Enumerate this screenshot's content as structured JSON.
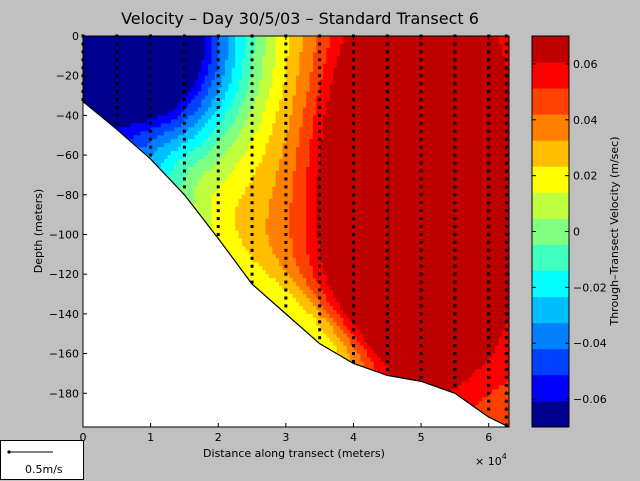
{
  "figure": {
    "background": "#c0c0c0",
    "scale_label": "0.5m/s",
    "x_multiplier_base": "× 10",
    "x_multiplier_exp": "4"
  },
  "chart_data": {
    "type": "heatmap",
    "title": "Velocity – Day 30/5/03 – Standard Transect 6",
    "xlabel": "Distance along transect (meters)",
    "ylabel": "Depth (meters)",
    "colorbar_label": "Through–Transect Velocity (m/sec)",
    "xlim": [
      0,
      63000
    ],
    "ylim": [
      -197,
      0
    ],
    "x_ticks": [
      0,
      10000,
      20000,
      30000,
      40000,
      50000,
      60000
    ],
    "x_tick_labels": [
      "0",
      "1",
      "2",
      "3",
      "4",
      "5",
      "6"
    ],
    "y_ticks": [
      0,
      -20,
      -40,
      -60,
      -80,
      -100,
      -120,
      -140,
      -160,
      -180
    ],
    "y_tick_labels": [
      "0",
      "−20",
      "−40",
      "−60",
      "−80",
      "−100",
      "−120",
      "−140",
      "−160",
      "−180"
    ],
    "clim": [
      -0.07,
      0.07
    ],
    "colorbar_ticks": [
      0.06,
      0.04,
      0.02,
      0,
      -0.02,
      -0.04,
      -0.06
    ],
    "colorbar_tick_labels": [
      "0.06",
      "0.04",
      "0.02",
      "0",
      "−0.02",
      "−0.04",
      "−0.06"
    ],
    "colormap": [
      "#00008f",
      "#0000ff",
      "#0040ff",
      "#0080ff",
      "#00bfff",
      "#00ffff",
      "#40ffbf",
      "#80ff80",
      "#bfff40",
      "#ffff00",
      "#ffbf00",
      "#ff8000",
      "#ff4000",
      "#ff0000",
      "#bf0000"
    ],
    "bottom_profile": {
      "x": [
        0,
        5000,
        10000,
        15000,
        20000,
        25000,
        30000,
        35000,
        40000,
        45000,
        50000,
        55000,
        60000,
        63000
      ],
      "depth": [
        -33,
        -47,
        -62,
        -80,
        -102,
        -125,
        -140,
        -155,
        -165,
        -171,
        -174,
        -180,
        -192,
        -197
      ]
    },
    "station_x": [
      0,
      5000,
      10000,
      15000,
      20000,
      25000,
      30000,
      35000,
      40000,
      45000,
      50000,
      55000,
      60000,
      63000
    ],
    "sample_spacing_m": 4,
    "velocity_field": {
      "core_negative": {
        "x": 8000,
        "depth": -5,
        "value": -0.065
      },
      "core_positive": {
        "x": 48000,
        "depth": -80,
        "value": 0.065
      },
      "near_bottom_cyan_x": 37000
    }
  }
}
